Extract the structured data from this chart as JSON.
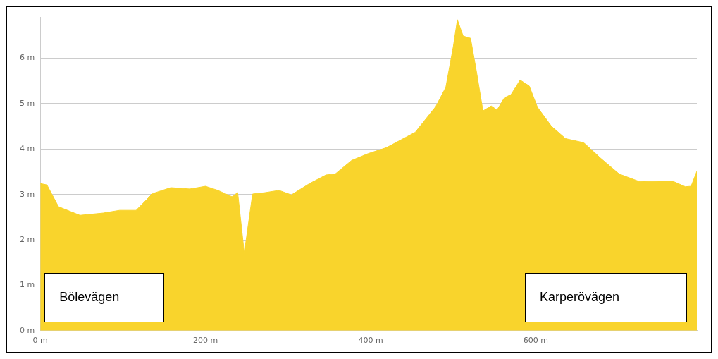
{
  "chart_data": {
    "type": "area",
    "x": [
      0,
      8,
      22,
      48,
      76,
      96,
      116,
      136,
      158,
      181,
      200,
      215,
      232,
      239,
      247,
      257,
      272,
      289,
      304,
      326,
      346,
      357,
      377,
      397,
      419,
      454,
      479,
      491,
      500,
      505,
      512,
      521,
      528,
      536,
      546,
      553,
      562,
      570,
      581,
      592,
      602,
      619,
      636,
      658,
      679,
      701,
      726,
      749,
      766,
      781,
      788,
      795
    ],
    "series": [
      {
        "color": "#f9d42c",
        "values": [
          3.24,
          3.21,
          2.73,
          2.54,
          2.59,
          2.65,
          2.65,
          3.02,
          3.15,
          3.12,
          3.18,
          3.09,
          2.95,
          3.04,
          1.71,
          3.01,
          3.04,
          3.09,
          2.99,
          3.24,
          3.43,
          3.45,
          3.75,
          3.9,
          4.03,
          4.37,
          4.94,
          5.36,
          6.25,
          6.85,
          6.49,
          6.44,
          5.72,
          4.84,
          4.95,
          4.86,
          5.13,
          5.2,
          5.52,
          5.39,
          4.92,
          4.5,
          4.23,
          4.14,
          3.79,
          3.45,
          3.28,
          3.29,
          3.29,
          3.17,
          3.18,
          3.51
        ]
      }
    ],
    "xlim": [
      0,
      795
    ],
    "ylim": [
      0,
      6.9
    ],
    "xticks": [
      {
        "value": 0,
        "label": "0 m"
      },
      {
        "value": 200,
        "label": "200 m"
      },
      {
        "value": 400,
        "label": "400 m"
      },
      {
        "value": 600,
        "label": "600 m"
      }
    ],
    "yticks": [
      {
        "value": 0,
        "label": "0 m"
      },
      {
        "value": 1,
        "label": "1 m"
      },
      {
        "value": 2,
        "label": "2 m"
      },
      {
        "value": 3,
        "label": "3 m"
      },
      {
        "value": 4,
        "label": "4 m"
      },
      {
        "value": 5,
        "label": "5 m"
      },
      {
        "value": 6,
        "label": "6 m"
      }
    ],
    "grid": "y",
    "legend": false,
    "marker": "none",
    "annotations": [
      "Bölevägen",
      "Karperövägen"
    ]
  }
}
